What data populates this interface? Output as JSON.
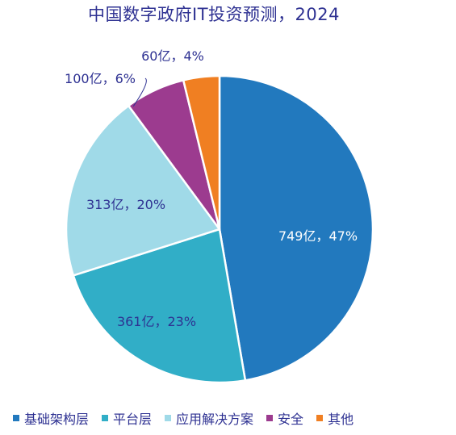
{
  "chart_data": {
    "type": "pie",
    "title": "中国数字政府IT投资预测，2024",
    "slices": [
      {
        "name": "基础架构层",
        "value": 749,
        "percent": 47,
        "label": "749亿，47%",
        "color": "#2279be"
      },
      {
        "name": "平台层",
        "value": 361,
        "percent": 23,
        "label": "361亿，23%",
        "color": "#31aec7"
      },
      {
        "name": "应用解决方案",
        "value": 313,
        "percent": 20,
        "label": "313亿，20%",
        "color": "#a0dae8"
      },
      {
        "name": "安全",
        "value": 100,
        "percent": 6,
        "label": "100亿，6%",
        "color": "#9c3b8f"
      },
      {
        "name": "其他",
        "value": 60,
        "percent": 4,
        "label": "60亿，4%",
        "color": "#f07f22"
      }
    ],
    "legend_position": "bottom"
  }
}
